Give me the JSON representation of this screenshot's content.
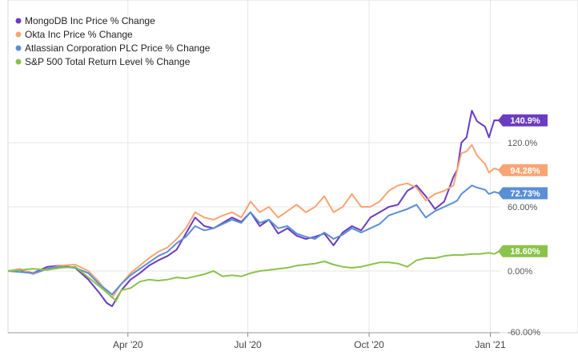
{
  "chart_data": {
    "type": "line",
    "x_ticks": [
      "Apr '20",
      "Jul '20",
      "Oct '20",
      "Jan '21"
    ],
    "y_ticks": [
      "120.0%",
      "60.00%",
      "0.00%",
      "-60.00%"
    ],
    "ylim": [
      -60,
      160
    ],
    "grid": true,
    "legend_position": "top-left",
    "series": [
      {
        "name": "MongoDB Inc Price % Change",
        "color": "#6a3cc1",
        "end_label": "140.9%",
        "points": [
          [
            "2020-01-01",
            0
          ],
          [
            "2020-01-10",
            1
          ],
          [
            "2020-01-20",
            -2
          ],
          [
            "2020-01-31",
            4
          ],
          [
            "2020-02-10",
            5
          ],
          [
            "2020-02-21",
            3
          ],
          [
            "2020-03-02",
            -8
          ],
          [
            "2020-03-10",
            -20
          ],
          [
            "2020-03-16",
            -30
          ],
          [
            "2020-03-20",
            -33
          ],
          [
            "2020-03-27",
            -18
          ],
          [
            "2020-04-03",
            -8
          ],
          [
            "2020-04-10",
            -2
          ],
          [
            "2020-04-17",
            5
          ],
          [
            "2020-04-24",
            10
          ],
          [
            "2020-05-01",
            14
          ],
          [
            "2020-05-08",
            20
          ],
          [
            "2020-05-15",
            35
          ],
          [
            "2020-05-22",
            50
          ],
          [
            "2020-05-29",
            42
          ],
          [
            "2020-06-05",
            40
          ],
          [
            "2020-06-12",
            45
          ],
          [
            "2020-06-19",
            50
          ],
          [
            "2020-06-26",
            46
          ],
          [
            "2020-07-03",
            55
          ],
          [
            "2020-07-10",
            42
          ],
          [
            "2020-07-17",
            48
          ],
          [
            "2020-07-24",
            35
          ],
          [
            "2020-07-31",
            40
          ],
          [
            "2020-08-07",
            33
          ],
          [
            "2020-08-14",
            30
          ],
          [
            "2020-08-21",
            32
          ],
          [
            "2020-08-28",
            35
          ],
          [
            "2020-09-04",
            24
          ],
          [
            "2020-09-11",
            36
          ],
          [
            "2020-09-18",
            42
          ],
          [
            "2020-09-25",
            38
          ],
          [
            "2020-10-02",
            50
          ],
          [
            "2020-10-09",
            55
          ],
          [
            "2020-10-16",
            60
          ],
          [
            "2020-10-23",
            62
          ],
          [
            "2020-10-30",
            75
          ],
          [
            "2020-11-06",
            80
          ],
          [
            "2020-11-13",
            70
          ],
          [
            "2020-11-20",
            58
          ],
          [
            "2020-11-27",
            65
          ],
          [
            "2020-12-04",
            88
          ],
          [
            "2020-12-07",
            95
          ],
          [
            "2020-12-10",
            120
          ],
          [
            "2020-12-14",
            125
          ],
          [
            "2020-12-18",
            150
          ],
          [
            "2020-12-22",
            140
          ],
          [
            "2020-12-28",
            135
          ],
          [
            "2020-12-31",
            125
          ],
          [
            "2021-01-04",
            141
          ],
          [
            "2021-01-08",
            140.9
          ]
        ]
      },
      {
        "name": "Okta Inc Price % Change",
        "color": "#f7a574",
        "end_label": "94.28%",
        "points": [
          [
            "2020-01-01",
            0
          ],
          [
            "2020-01-10",
            2
          ],
          [
            "2020-01-20",
            -3
          ],
          [
            "2020-01-31",
            2
          ],
          [
            "2020-02-10",
            5
          ],
          [
            "2020-02-21",
            6
          ],
          [
            "2020-03-02",
            0
          ],
          [
            "2020-03-10",
            -10
          ],
          [
            "2020-03-16",
            -20
          ],
          [
            "2020-03-20",
            -25
          ],
          [
            "2020-03-27",
            -12
          ],
          [
            "2020-04-03",
            -2
          ],
          [
            "2020-04-10",
            5
          ],
          [
            "2020-04-17",
            12
          ],
          [
            "2020-04-24",
            18
          ],
          [
            "2020-05-01",
            22
          ],
          [
            "2020-05-08",
            30
          ],
          [
            "2020-05-15",
            40
          ],
          [
            "2020-05-22",
            55
          ],
          [
            "2020-05-29",
            50
          ],
          [
            "2020-06-05",
            48
          ],
          [
            "2020-06-12",
            52
          ],
          [
            "2020-06-19",
            55
          ],
          [
            "2020-06-26",
            50
          ],
          [
            "2020-07-03",
            65
          ],
          [
            "2020-07-10",
            55
          ],
          [
            "2020-07-17",
            60
          ],
          [
            "2020-07-24",
            50
          ],
          [
            "2020-07-31",
            56
          ],
          [
            "2020-08-07",
            62
          ],
          [
            "2020-08-14",
            55
          ],
          [
            "2020-08-21",
            60
          ],
          [
            "2020-08-28",
            70
          ],
          [
            "2020-09-04",
            55
          ],
          [
            "2020-09-11",
            60
          ],
          [
            "2020-09-18",
            72
          ],
          [
            "2020-09-25",
            60
          ],
          [
            "2020-10-02",
            60
          ],
          [
            "2020-10-09",
            65
          ],
          [
            "2020-10-16",
            75
          ],
          [
            "2020-10-23",
            80
          ],
          [
            "2020-10-30",
            82
          ],
          [
            "2020-11-06",
            78
          ],
          [
            "2020-11-13",
            66
          ],
          [
            "2020-11-20",
            72
          ],
          [
            "2020-11-27",
            75
          ],
          [
            "2020-12-04",
            80
          ],
          [
            "2020-12-07",
            95
          ],
          [
            "2020-12-10",
            110
          ],
          [
            "2020-12-14",
            112
          ],
          [
            "2020-12-18",
            118
          ],
          [
            "2020-12-22",
            108
          ],
          [
            "2020-12-28",
            100
          ],
          [
            "2020-12-31",
            92
          ],
          [
            "2021-01-04",
            96
          ],
          [
            "2021-01-08",
            94.28
          ]
        ]
      },
      {
        "name": "Atlassian Corporation PLC Price % Change",
        "color": "#5b8fd4",
        "end_label": "72.73%",
        "points": [
          [
            "2020-01-01",
            0
          ],
          [
            "2020-01-10",
            -1
          ],
          [
            "2020-01-20",
            -2
          ],
          [
            "2020-01-31",
            2
          ],
          [
            "2020-02-10",
            4
          ],
          [
            "2020-02-21",
            3
          ],
          [
            "2020-03-02",
            -2
          ],
          [
            "2020-03-10",
            -12
          ],
          [
            "2020-03-16",
            -18
          ],
          [
            "2020-03-20",
            -22
          ],
          [
            "2020-03-27",
            -12
          ],
          [
            "2020-04-03",
            -4
          ],
          [
            "2020-04-10",
            2
          ],
          [
            "2020-04-17",
            8
          ],
          [
            "2020-04-24",
            14
          ],
          [
            "2020-05-01",
            18
          ],
          [
            "2020-05-08",
            26
          ],
          [
            "2020-05-15",
            32
          ],
          [
            "2020-05-22",
            42
          ],
          [
            "2020-05-29",
            38
          ],
          [
            "2020-06-05",
            40
          ],
          [
            "2020-06-12",
            44
          ],
          [
            "2020-06-19",
            48
          ],
          [
            "2020-06-26",
            45
          ],
          [
            "2020-07-03",
            55
          ],
          [
            "2020-07-10",
            45
          ],
          [
            "2020-07-17",
            48
          ],
          [
            "2020-07-24",
            40
          ],
          [
            "2020-07-31",
            42
          ],
          [
            "2020-08-07",
            35
          ],
          [
            "2020-08-14",
            32
          ],
          [
            "2020-08-21",
            30
          ],
          [
            "2020-08-28",
            36
          ],
          [
            "2020-09-04",
            30
          ],
          [
            "2020-09-11",
            34
          ],
          [
            "2020-09-18",
            40
          ],
          [
            "2020-09-25",
            36
          ],
          [
            "2020-10-02",
            40
          ],
          [
            "2020-10-09",
            44
          ],
          [
            "2020-10-16",
            52
          ],
          [
            "2020-10-23",
            55
          ],
          [
            "2020-10-30",
            58
          ],
          [
            "2020-11-06",
            62
          ],
          [
            "2020-11-13",
            50
          ],
          [
            "2020-11-20",
            56
          ],
          [
            "2020-11-27",
            60
          ],
          [
            "2020-12-04",
            64
          ],
          [
            "2020-12-07",
            66
          ],
          [
            "2020-12-10",
            72
          ],
          [
            "2020-12-14",
            76
          ],
          [
            "2020-12-18",
            80
          ],
          [
            "2020-12-22",
            78
          ],
          [
            "2020-12-28",
            76
          ],
          [
            "2020-12-31",
            72
          ],
          [
            "2021-01-04",
            74
          ],
          [
            "2021-01-08",
            72.73
          ]
        ]
      },
      {
        "name": "S&P 500 Total Return Level % Change",
        "color": "#8bc34a",
        "end_label": "18.60%",
        "points": [
          [
            "2020-01-01",
            0
          ],
          [
            "2020-01-10",
            1
          ],
          [
            "2020-01-20",
            2
          ],
          [
            "2020-01-31",
            1
          ],
          [
            "2020-02-10",
            3
          ],
          [
            "2020-02-21",
            4
          ],
          [
            "2020-03-02",
            -6
          ],
          [
            "2020-03-10",
            -14
          ],
          [
            "2020-03-16",
            -20
          ],
          [
            "2020-03-23",
            -28
          ],
          [
            "2020-03-27",
            -18
          ],
          [
            "2020-04-03",
            -16
          ],
          [
            "2020-04-10",
            -10
          ],
          [
            "2020-04-17",
            -8
          ],
          [
            "2020-04-24",
            -9
          ],
          [
            "2020-05-01",
            -8
          ],
          [
            "2020-05-08",
            -6
          ],
          [
            "2020-05-15",
            -7
          ],
          [
            "2020-05-22",
            -5
          ],
          [
            "2020-05-29",
            -3
          ],
          [
            "2020-06-05",
            0
          ],
          [
            "2020-06-12",
            -5
          ],
          [
            "2020-06-19",
            -4
          ],
          [
            "2020-06-26",
            -5
          ],
          [
            "2020-07-03",
            -2
          ],
          [
            "2020-07-10",
            0
          ],
          [
            "2020-07-17",
            1
          ],
          [
            "2020-07-24",
            2
          ],
          [
            "2020-07-31",
            3
          ],
          [
            "2020-08-07",
            5
          ],
          [
            "2020-08-14",
            6
          ],
          [
            "2020-08-21",
            7
          ],
          [
            "2020-08-28",
            9
          ],
          [
            "2020-09-04",
            6
          ],
          [
            "2020-09-11",
            4
          ],
          [
            "2020-09-18",
            3
          ],
          [
            "2020-09-25",
            4
          ],
          [
            "2020-10-02",
            6
          ],
          [
            "2020-10-09",
            8
          ],
          [
            "2020-10-16",
            8
          ],
          [
            "2020-10-23",
            7
          ],
          [
            "2020-10-30",
            4
          ],
          [
            "2020-11-06",
            10
          ],
          [
            "2020-11-13",
            12
          ],
          [
            "2020-11-20",
            12
          ],
          [
            "2020-11-27",
            14
          ],
          [
            "2020-12-04",
            15
          ],
          [
            "2020-12-11",
            15
          ],
          [
            "2020-12-18",
            16
          ],
          [
            "2020-12-24",
            16
          ],
          [
            "2020-12-31",
            17
          ],
          [
            "2021-01-04",
            16
          ],
          [
            "2021-01-08",
            18.6
          ]
        ]
      }
    ]
  }
}
